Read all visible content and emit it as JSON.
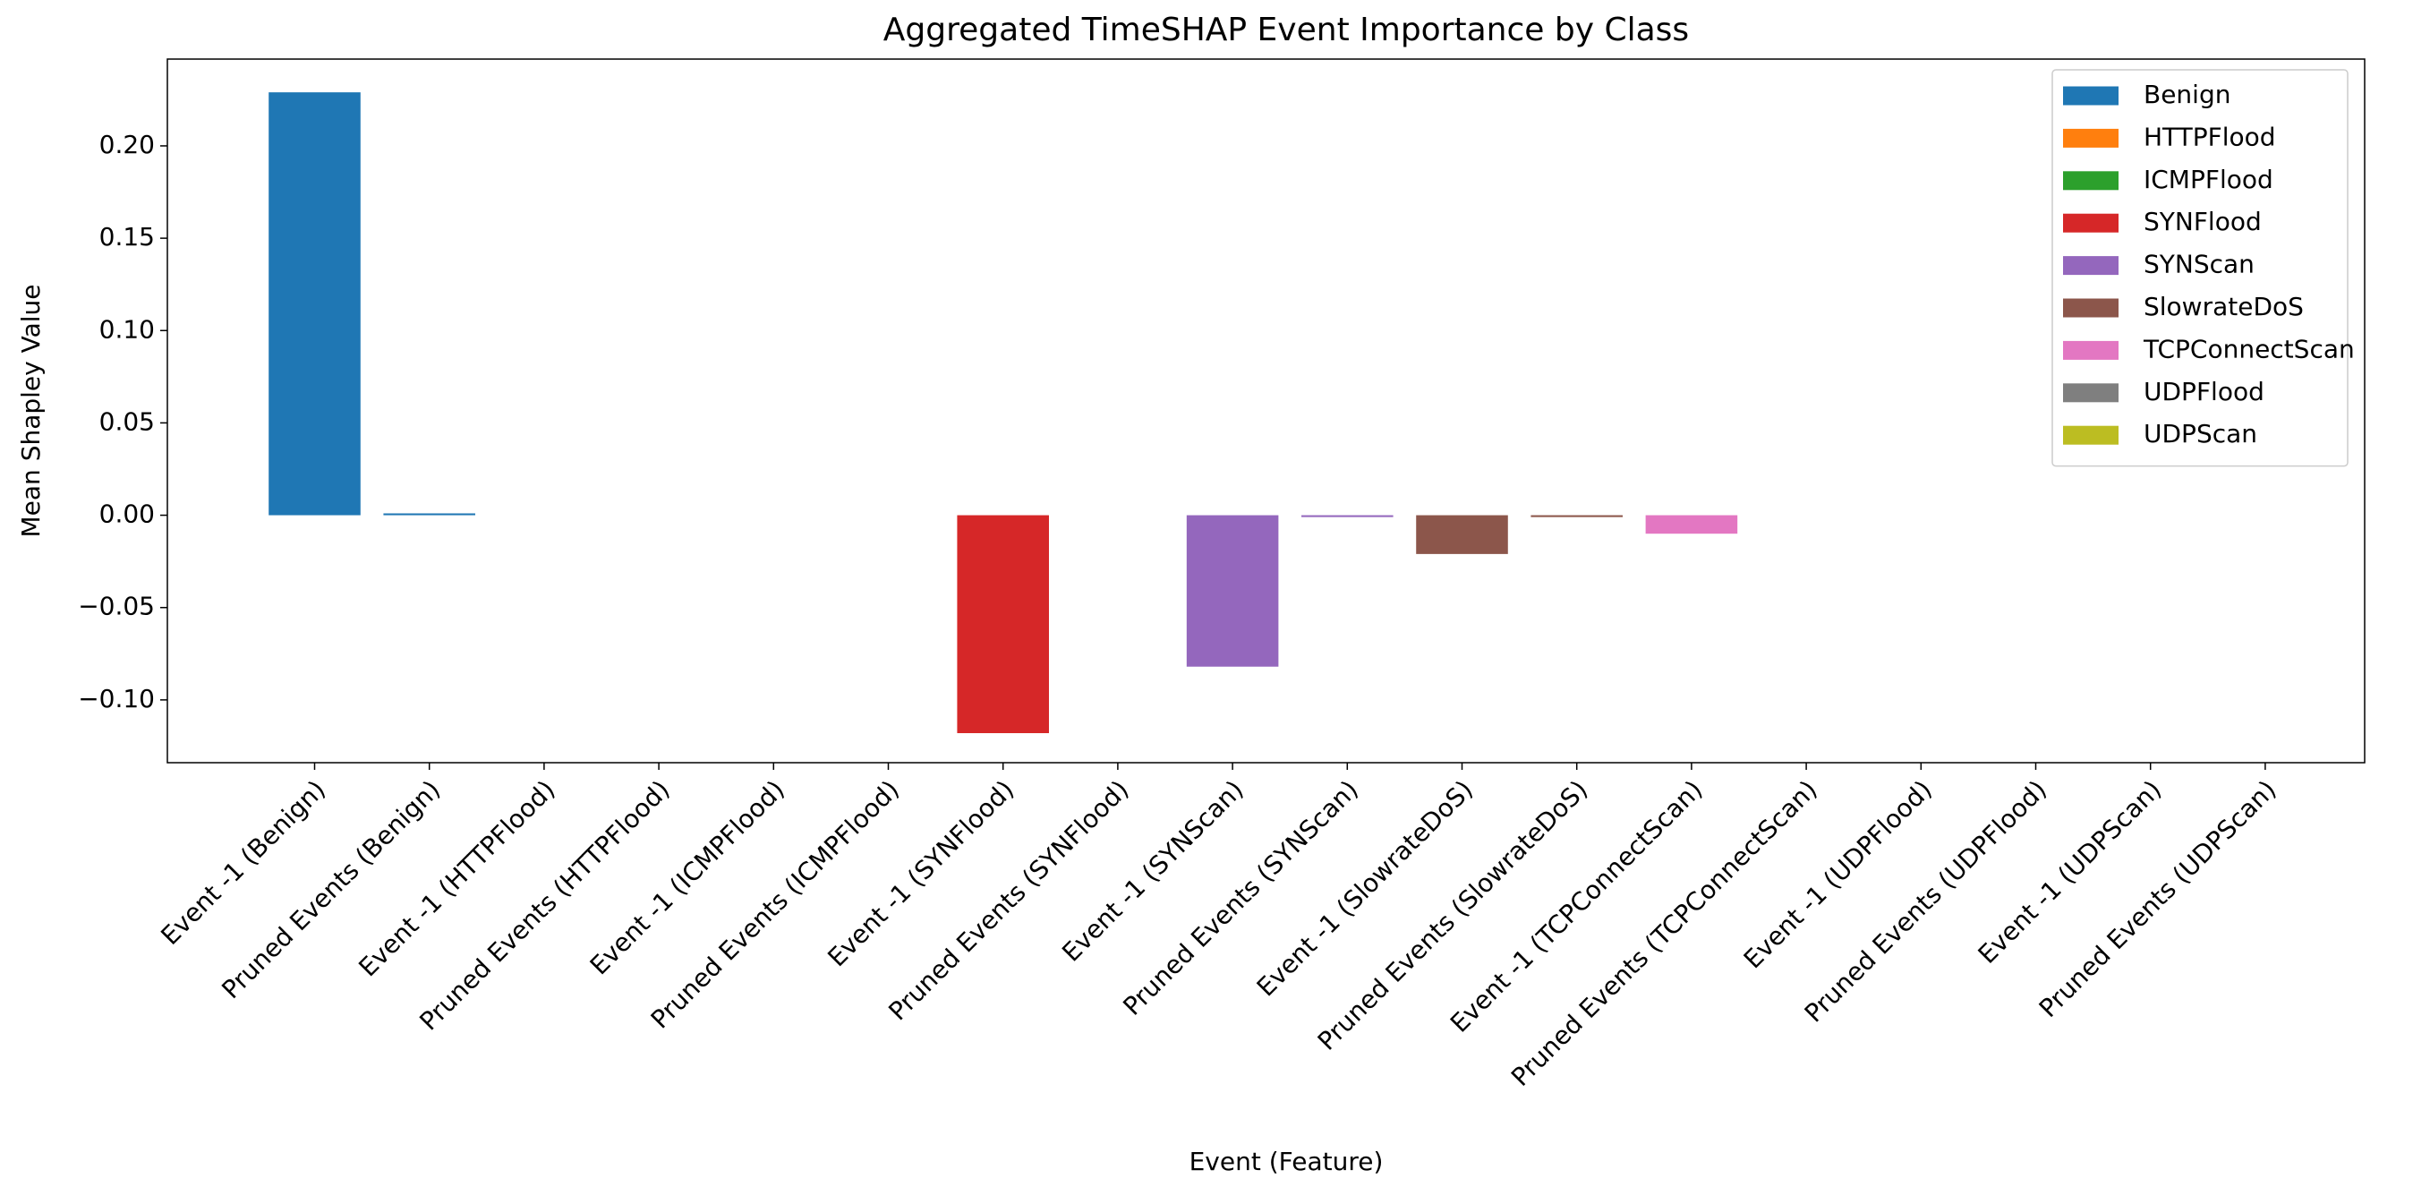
{
  "chart_data": {
    "type": "bar",
    "title": "Aggregated TimeSHAP Event Importance by Class",
    "x_label": "Event (Feature)",
    "y_label": "Mean Shapley Value",
    "categories": [
      "Event -1 (Benign)",
      "Pruned Events (Benign)",
      "Event -1 (HTTPFlood)",
      "Pruned Events (HTTPFlood)",
      "Event -1 (ICMPFlood)",
      "Pruned Events (ICMPFlood)",
      "Event -1 (SYNFlood)",
      "Pruned Events (SYNFlood)",
      "Event -1 (SYNScan)",
      "Pruned Events (SYNScan)",
      "Event -1 (SlowrateDoS)",
      "Pruned Events (SlowrateDoS)",
      "Event -1 (TCPConnectScan)",
      "Pruned Events (TCPConnectScan)",
      "Event -1 (UDPFlood)",
      "Pruned Events (UDPFlood)",
      "Event -1 (UDPScan)",
      "Pruned Events (UDPScan)"
    ],
    "series": [
      {
        "name": "Benign",
        "color": "#1f77b4",
        "values": [
          0.229,
          0.001,
          null,
          null,
          null,
          null,
          null,
          null,
          null,
          null,
          null,
          null,
          null,
          null,
          null,
          null,
          null,
          null
        ]
      },
      {
        "name": "HTTPFlood",
        "color": "#ff7f0e",
        "values": [
          null,
          null,
          0,
          0,
          null,
          null,
          null,
          null,
          null,
          null,
          null,
          null,
          null,
          null,
          null,
          null,
          null,
          null
        ]
      },
      {
        "name": "ICMPFlood",
        "color": "#2ca02c",
        "values": [
          null,
          null,
          null,
          null,
          0,
          0,
          null,
          null,
          null,
          null,
          null,
          null,
          null,
          null,
          null,
          null,
          null,
          null
        ]
      },
      {
        "name": "SYNFlood",
        "color": "#d62728",
        "values": [
          null,
          null,
          null,
          null,
          null,
          null,
          -0.118,
          0,
          null,
          null,
          null,
          null,
          null,
          null,
          null,
          null,
          null,
          null
        ]
      },
      {
        "name": "SYNScan",
        "color": "#9467bd",
        "values": [
          null,
          null,
          null,
          null,
          null,
          null,
          null,
          null,
          -0.082,
          -0.001,
          null,
          null,
          null,
          null,
          null,
          null,
          null,
          null
        ]
      },
      {
        "name": "SlowrateDoS",
        "color": "#8c564b",
        "values": [
          null,
          null,
          null,
          null,
          null,
          null,
          null,
          null,
          null,
          null,
          -0.021,
          -0.001,
          null,
          null,
          null,
          null,
          null,
          null
        ]
      },
      {
        "name": "TCPConnectScan",
        "color": "#e377c2",
        "values": [
          null,
          null,
          null,
          null,
          null,
          null,
          null,
          null,
          null,
          null,
          null,
          null,
          -0.01,
          0,
          null,
          null,
          null,
          null
        ]
      },
      {
        "name": "UDPFlood",
        "color": "#7f7f7f",
        "values": [
          null,
          null,
          null,
          null,
          null,
          null,
          null,
          null,
          null,
          null,
          null,
          null,
          null,
          null,
          0,
          0,
          null,
          null
        ]
      },
      {
        "name": "UDPScan",
        "color": "#bcbd22",
        "values": [
          null,
          null,
          null,
          null,
          null,
          null,
          null,
          null,
          null,
          null,
          null,
          null,
          null,
          null,
          null,
          null,
          0,
          0
        ]
      }
    ],
    "ylim": [
      -0.134,
      0.247
    ],
    "yticks": [
      {
        "value": -0.1,
        "label": "−0.10"
      },
      {
        "value": -0.05,
        "label": "−0.05"
      },
      {
        "value": 0,
        "label": "0.00"
      },
      {
        "value": 0.05,
        "label": "0.05"
      },
      {
        "value": 0.1,
        "label": "0.10"
      },
      {
        "value": 0.15,
        "label": "0.15"
      },
      {
        "value": 0.2,
        "label": "0.20"
      }
    ],
    "legend": "upper right",
    "grid": false
  }
}
